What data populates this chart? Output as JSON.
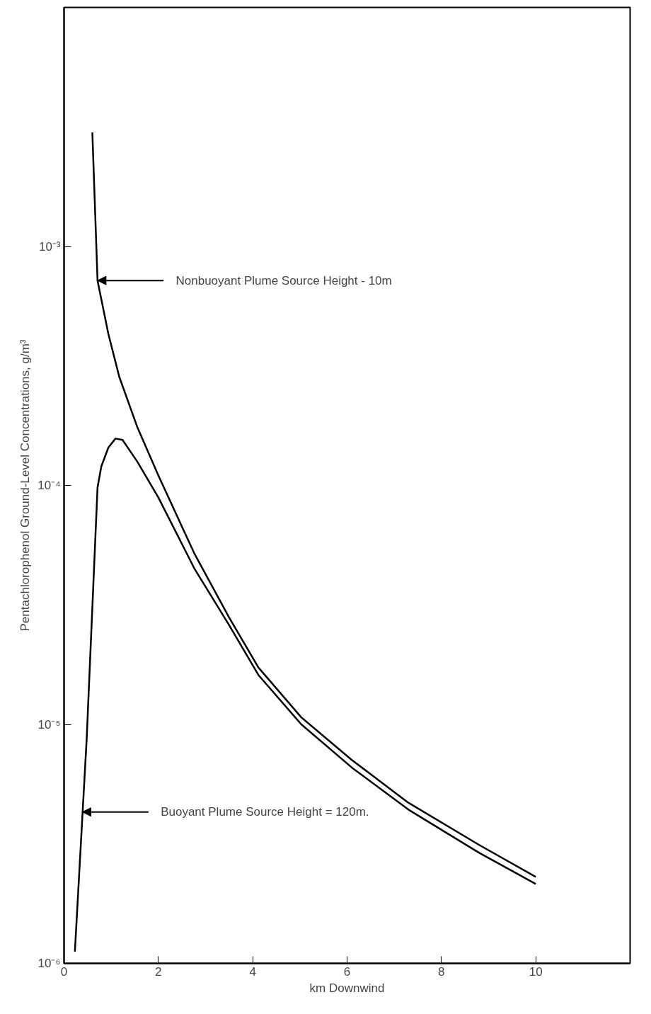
{
  "chart_data": {
    "type": "line",
    "xlabel": "km Downwind",
    "ylabel": "Pentachlorophenol Ground-Level Concentrations, g/m³",
    "log": "y",
    "grid": false,
    "marker": "none",
    "line_style": "solid",
    "xlim": [
      0,
      12
    ],
    "xticks": [
      0,
      2,
      4,
      6,
      8,
      10
    ],
    "ylim": [
      1e-06,
      0.01
    ],
    "yticks": [
      {
        "value": 1e-06,
        "label": "10⁻⁶"
      },
      {
        "value": 1e-05,
        "label": "10⁻⁵"
      },
      {
        "value": 0.0001,
        "label": "10⁻⁴"
      },
      {
        "value": 0.001,
        "label": "10⁻³"
      }
    ],
    "series": [
      {
        "color": "#000000",
        "x": [
          0.6,
          0.71,
          0.94,
          1.17,
          1.55,
          2.0,
          2.76,
          3.5,
          4.12,
          5.03,
          6.1,
          7.3,
          8.8,
          10
        ],
        "values": [
          0.003,
          0.00072,
          0.00043,
          0.000285,
          0.000176,
          0.00011,
          5.2e-05,
          2.8e-05,
          1.73e-05,
          1.07e-05,
          7.1e-06,
          4.7e-06,
          3.13e-06,
          2.3e-06
        ]
      },
      {
        "color": "#000000",
        "x": [
          0.23,
          0.48,
          0.71,
          0.79,
          0.94,
          1.09,
          1.24,
          1.55,
          2.0,
          2.76,
          3.5,
          4.12,
          5.03,
          6.1,
          7.3,
          8.8,
          10
        ],
        "values": [
          1.12e-06,
          8.7e-06,
          9.8e-05,
          0.00012,
          0.000144,
          0.000157,
          0.000155,
          0.000126,
          8.9e-05,
          4.5e-05,
          2.6e-05,
          1.61e-05,
          1e-05,
          6.6e-06,
          4.4e-06,
          2.9e-06,
          2.15e-06
        ]
      }
    ],
    "annotations": [
      {
        "text": "Nonbuoyant Plume Source Height - 10m",
        "x": 0.71,
        "y": 0.00072
      },
      {
        "text": "Buoyant Plume Source Height = 120m.",
        "x": 0.39,
        "y": 4.3e-06
      }
    ]
  }
}
